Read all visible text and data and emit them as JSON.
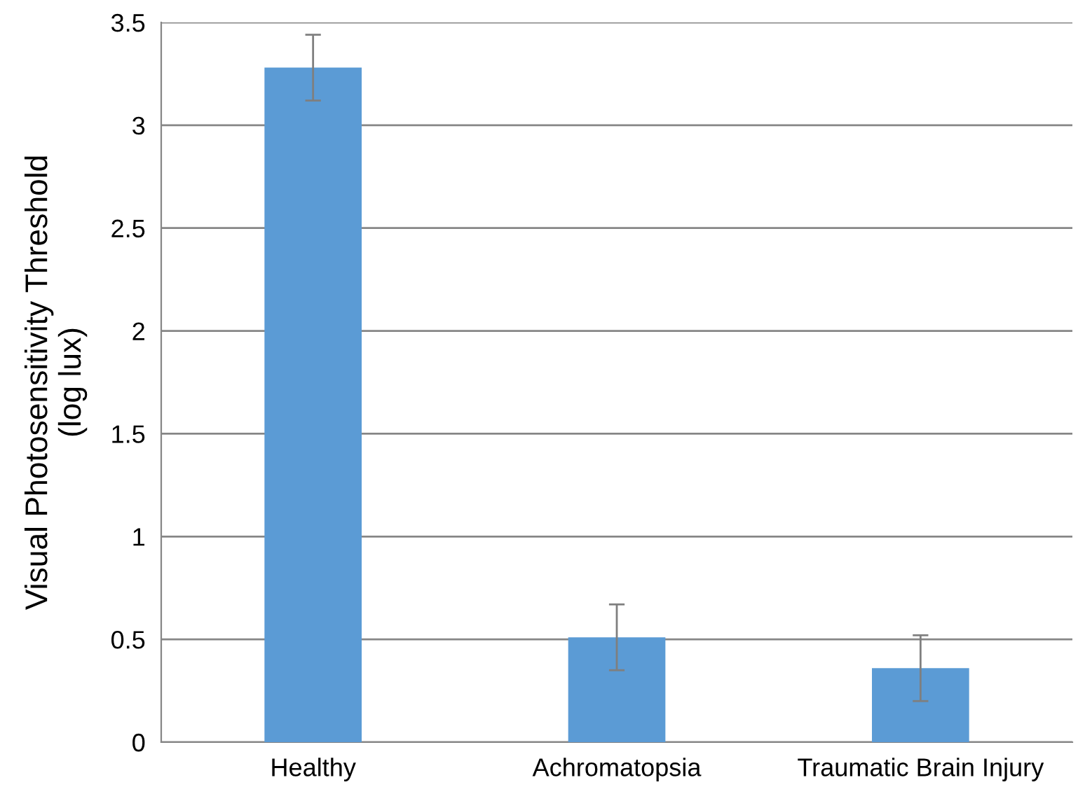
{
  "chart_data": {
    "type": "bar",
    "ylabel": "Visual Photosensitivity Threshold\n(log lux)",
    "categories": [
      "Healthy",
      "Achromatopsia",
      "Traumatic Brain Injury"
    ],
    "values": [
      3.28,
      0.51,
      0.36
    ],
    "errors": [
      0.16,
      0.16,
      0.16
    ],
    "color": "#5b9bd5",
    "ylim": [
      0,
      3.5
    ],
    "yticks": [
      0,
      0.5,
      1,
      1.5,
      2,
      2.5,
      3,
      3.5
    ],
    "grid": "y"
  }
}
